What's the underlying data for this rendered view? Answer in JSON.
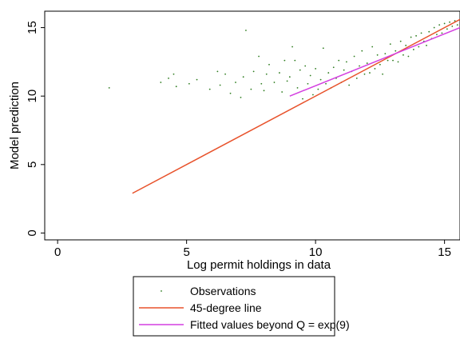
{
  "chart_data": {
    "type": "scatter",
    "xlabel": "Log permit holdings in data",
    "ylabel": "Model prediction",
    "xlim": [
      -0.5,
      15.6
    ],
    "ylim": [
      -0.5,
      16.2
    ],
    "x_ticks": [
      "0",
      "5",
      "10",
      "15"
    ],
    "y_ticks": [
      "0",
      "5",
      "10",
      "15"
    ],
    "grid": false,
    "legend_position": "bottom",
    "series": [
      {
        "name": "Observations",
        "kind": "scatter",
        "color": "#2e7d1f",
        "points": [
          [
            2.0,
            10.6
          ],
          [
            4.0,
            11.0
          ],
          [
            4.3,
            11.3
          ],
          [
            4.5,
            11.6
          ],
          [
            4.6,
            10.7
          ],
          [
            5.1,
            10.9
          ],
          [
            5.4,
            11.2
          ],
          [
            5.9,
            10.5
          ],
          [
            6.2,
            11.8
          ],
          [
            6.3,
            10.8
          ],
          [
            6.5,
            11.6
          ],
          [
            6.7,
            10.2
          ],
          [
            6.9,
            11.0
          ],
          [
            7.1,
            9.9
          ],
          [
            7.2,
            11.4
          ],
          [
            7.3,
            14.8
          ],
          [
            7.5,
            10.5
          ],
          [
            7.6,
            11.8
          ],
          [
            7.8,
            12.9
          ],
          [
            7.9,
            10.9
          ],
          [
            8.0,
            10.4
          ],
          [
            8.1,
            11.6
          ],
          [
            8.2,
            12.3
          ],
          [
            8.4,
            11.0
          ],
          [
            8.6,
            11.7
          ],
          [
            8.7,
            10.3
          ],
          [
            8.8,
            12.6
          ],
          [
            8.9,
            11.1
          ],
          [
            9.0,
            11.4
          ],
          [
            9.1,
            13.6
          ],
          [
            9.2,
            12.6
          ],
          [
            9.3,
            10.6
          ],
          [
            9.4,
            11.9
          ],
          [
            9.5,
            9.8
          ],
          [
            9.6,
            12.2
          ],
          [
            9.7,
            10.9
          ],
          [
            9.8,
            11.5
          ],
          [
            9.9,
            10.1
          ],
          [
            10.0,
            12.0
          ],
          [
            10.1,
            10.5
          ],
          [
            10.2,
            11.2
          ],
          [
            10.3,
            13.5
          ],
          [
            10.4,
            10.9
          ],
          [
            10.5,
            11.7
          ],
          [
            10.6,
            10.6
          ],
          [
            10.7,
            12.1
          ],
          [
            10.8,
            11.3
          ],
          [
            10.9,
            12.6
          ],
          [
            11.0,
            11.0
          ],
          [
            11.1,
            11.9
          ],
          [
            11.2,
            12.5
          ],
          [
            11.3,
            10.8
          ],
          [
            11.4,
            11.8
          ],
          [
            11.5,
            12.9
          ],
          [
            11.6,
            11.3
          ],
          [
            11.7,
            12.2
          ],
          [
            11.8,
            13.3
          ],
          [
            11.9,
            11.6
          ],
          [
            12.0,
            12.4
          ],
          [
            12.1,
            11.7
          ],
          [
            12.2,
            13.6
          ],
          [
            12.3,
            12.0
          ],
          [
            12.4,
            13.0
          ],
          [
            12.5,
            12.3
          ],
          [
            12.6,
            11.6
          ],
          [
            12.7,
            13.1
          ],
          [
            12.8,
            12.6
          ],
          [
            12.9,
            13.8
          ],
          [
            13.0,
            12.6
          ],
          [
            13.1,
            13.3
          ],
          [
            13.2,
            12.5
          ],
          [
            13.3,
            14.0
          ],
          [
            13.4,
            13.0
          ],
          [
            13.5,
            13.7
          ],
          [
            13.6,
            12.9
          ],
          [
            13.7,
            14.3
          ],
          [
            13.8,
            13.4
          ],
          [
            13.9,
            14.4
          ],
          [
            14.0,
            13.6
          ],
          [
            14.1,
            14.6
          ],
          [
            14.2,
            14.0
          ],
          [
            14.3,
            13.7
          ],
          [
            14.4,
            14.7
          ],
          [
            14.5,
            14.2
          ],
          [
            14.6,
            15.0
          ],
          [
            14.7,
            14.5
          ],
          [
            14.8,
            15.2
          ],
          [
            14.9,
            14.6
          ],
          [
            15.0,
            15.3
          ],
          [
            15.1,
            14.9
          ],
          [
            15.2,
            15.4
          ],
          [
            15.3,
            15.1
          ],
          [
            15.4,
            15.5
          ],
          [
            15.5,
            15.2
          ]
        ]
      },
      {
        "name": "45-degree line",
        "kind": "line",
        "color": "#e8522b",
        "points": [
          [
            2.9,
            2.9
          ],
          [
            15.6,
            15.6
          ]
        ]
      },
      {
        "name": "Fitted values beyond Q = exp(9)",
        "kind": "line",
        "color": "#d43fe0",
        "points": [
          [
            9.0,
            10.0
          ],
          [
            15.6,
            15.0
          ]
        ]
      }
    ]
  }
}
